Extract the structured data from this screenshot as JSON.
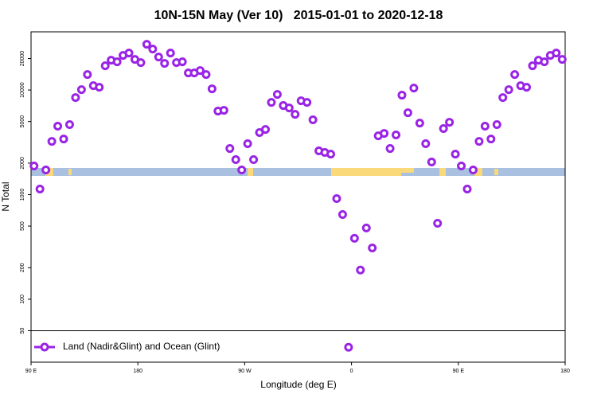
{
  "chart_data": {
    "type": "scatter",
    "title": "10N-15N May (Ver 10)   2015-01-01 to 2020-12-18",
    "x_label": "Longitude (deg E)",
    "y_label": "N Total",
    "log_y": true,
    "xlim": [
      90,
      540
    ],
    "ylim": [
      25,
      36000
    ],
    "xticks": [
      {
        "value": 90,
        "label": "90 E"
      },
      {
        "value": 180,
        "label": "180"
      },
      {
        "value": 270,
        "label": "90 W"
      },
      {
        "value": 360,
        "label": "0"
      },
      {
        "value": 450,
        "label": "90 E"
      },
      {
        "value": 540,
        "label": "180"
      }
    ],
    "yticks": [
      50,
      100,
      200,
      500,
      1000,
      2000,
      5000,
      10000,
      20000
    ],
    "legend": "bottom-left",
    "series": [
      {
        "name": "Land (Nadir&Glint) and Ocean (Glint)",
        "color": "#9a24e6",
        "x": [
          92.5,
          97.5,
          102.5,
          107.5,
          112.5,
          117.5,
          122.5,
          127.5,
          132.5,
          137.5,
          142.5,
          147.5,
          152.5,
          157.5,
          162.5,
          167.5,
          172.5,
          177.5,
          182.5,
          187.5,
          192.5,
          197.5,
          202.5,
          207.5,
          212.5,
          217.5,
          222.5,
          227.5,
          232.5,
          237.5,
          242.5,
          247.5,
          252.5,
          257.5,
          262.5,
          267.5,
          272.5,
          277.5,
          282.5,
          287.5,
          292.5,
          297.5,
          302.5,
          307.5,
          312.5,
          317.5,
          322.5,
          327.5,
          332.5,
          337.5,
          342.5,
          347.5,
          352.5,
          357.5,
          362.5,
          367.5,
          372.5,
          377.5,
          382.5,
          387.5,
          392.5,
          397.5,
          402.5,
          407.5,
          412.5,
          417.5,
          422.5,
          427.5,
          432.5,
          437.5,
          442.5,
          447.5,
          452.5,
          457.5,
          462.5,
          467.5,
          472.5,
          477.5,
          482.5,
          487.5,
          492.5,
          497.5,
          502.5,
          507.5,
          512.5,
          517.5,
          522.5,
          527.5,
          532.5,
          537.5
        ],
        "values": [
          1880,
          1130,
          1720,
          3230,
          4510,
          3400,
          4670,
          8470,
          10090,
          14070,
          11010,
          10630,
          17060,
          19280,
          18620,
          21420,
          22580,
          19620,
          18290,
          27360,
          24640,
          20690,
          17990,
          22580,
          18290,
          18620,
          14570,
          14570,
          15360,
          14070,
          10270,
          6290,
          6400,
          2760,
          2160,
          1720,
          3070,
          2160,
          3920,
          4200,
          7620,
          9080,
          7110,
          6740,
          5860,
          7890,
          7620,
          5190,
          2620,
          2530,
          2440,
          916,
          645,
          34.7,
          382,
          190,
          480,
          309,
          3650,
          3850,
          2760,
          3720,
          8930,
          6070,
          10450,
          4830,
          3070,
          2050,
          532,
          4280,
          4920,
          2440,
          1880,
          1130,
          1720,
          3230,
          4510,
          3400,
          4670,
          8470,
          10090,
          14070,
          11010,
          10630,
          17060,
          19280,
          18620,
          21420,
          22580,
          19620
        ]
      }
    ]
  }
}
